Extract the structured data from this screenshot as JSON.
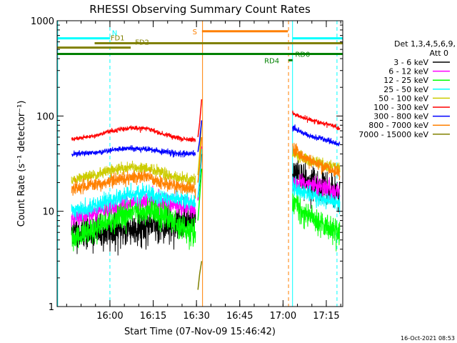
{
  "chart_data": {
    "type": "line",
    "title": "RHESSI Observing Summary Count Rates",
    "xlabel": "Start Time (07-Nov-09 15:46:42)",
    "ylabel": "Count Rate (s⁻¹ detector⁻¹)",
    "yscale": "log",
    "ylim": [
      1,
      1000
    ],
    "xlim_minutes": [
      -5,
      94
    ],
    "x_ticks": [
      {
        "t": 13.3,
        "label": "16:00"
      },
      {
        "t": 28.3,
        "label": "16:15"
      },
      {
        "t": 43.3,
        "label": "16:30"
      },
      {
        "t": 58.3,
        "label": "16:45"
      },
      {
        "t": 73.3,
        "label": "17:00"
      },
      {
        "t": 88.3,
        "label": "17:15"
      }
    ],
    "y_ticks": [
      {
        "v": 1,
        "label": "1"
      },
      {
        "v": 10,
        "label": "10"
      },
      {
        "v": 100,
        "label": "100"
      },
      {
        "v": 1000,
        "label": "1000"
      }
    ],
    "legend": {
      "title_lines": [
        "Det 1,3,4,5,6,9,",
        "Att 0"
      ],
      "placement": "right"
    },
    "footer_date": "16-Oct-2021 08:53",
    "gaps": [
      {
        "start": 45.2,
        "end": 76.5
      }
    ],
    "series": [
      {
        "name": "3 - 6 keV",
        "color": "#000000",
        "seed": 11,
        "noise": 0.09,
        "pre": [
          [
            0,
            6
          ],
          [
            8,
            6
          ],
          [
            14,
            6
          ],
          [
            20,
            6.5
          ],
          [
            27,
            7
          ],
          [
            33,
            7.3
          ],
          [
            38,
            7.5
          ],
          [
            43,
            8.5
          ]
        ],
        "spike": [
          [
            43.8,
            13
          ],
          [
            44.4,
            20
          ],
          [
            45.1,
            40
          ]
        ],
        "post": [
          [
            76.6,
            25
          ],
          [
            80,
            22
          ],
          [
            85,
            19
          ],
          [
            90,
            16
          ],
          [
            93,
            14.5
          ]
        ]
      },
      {
        "name": "6 - 12 keV",
        "color": "#ff00ff",
        "seed": 21,
        "noise": 0.05,
        "pre": [
          [
            0,
            8.3
          ],
          [
            8,
            9.5
          ],
          [
            14,
            10.5
          ],
          [
            20,
            12
          ],
          [
            26,
            12.8
          ],
          [
            32,
            12.5
          ],
          [
            38,
            11.2
          ],
          [
            43,
            10.5
          ]
        ],
        "spike": [
          [
            43.8,
            13
          ],
          [
            44.4,
            22
          ],
          [
            45.1,
            48
          ]
        ],
        "post": [
          [
            76.6,
            21
          ],
          [
            80,
            20
          ],
          [
            85,
            18
          ],
          [
            90,
            17
          ],
          [
            93,
            16
          ]
        ]
      },
      {
        "name": "12 - 25 keV",
        "color": "#00ff00",
        "seed": 31,
        "noise": 0.07,
        "pre": [
          [
            0,
            5
          ],
          [
            8,
            6.5
          ],
          [
            14,
            8
          ],
          [
            20,
            9.5
          ],
          [
            26,
            10
          ],
          [
            32,
            9
          ],
          [
            38,
            7
          ],
          [
            43,
            6
          ]
        ],
        "spike": [
          [
            43.8,
            8
          ],
          [
            44.4,
            14
          ],
          [
            45.1,
            28
          ]
        ],
        "post": [
          [
            76.6,
            13
          ],
          [
            80,
            10
          ],
          [
            85,
            8
          ],
          [
            90,
            6.5
          ],
          [
            93,
            6
          ]
        ]
      },
      {
        "name": "25 - 50 keV",
        "color": "#00ffff",
        "seed": 41,
        "noise": 0.045,
        "pre": [
          [
            0,
            10
          ],
          [
            8,
            11.5
          ],
          [
            14,
            13
          ],
          [
            20,
            15
          ],
          [
            26,
            15.5
          ],
          [
            32,
            14
          ],
          [
            38,
            13
          ],
          [
            43,
            12.5
          ]
        ],
        "spike": [
          [
            43.8,
            14
          ],
          [
            44.4,
            22
          ],
          [
            45.1,
            45
          ]
        ],
        "post": [
          [
            76.6,
            18
          ],
          [
            80,
            16
          ],
          [
            85,
            14
          ],
          [
            90,
            13
          ],
          [
            93,
            12
          ]
        ]
      },
      {
        "name": "50 - 100 keV",
        "color": "#cccc00",
        "seed": 51,
        "noise": 0.03,
        "pre": [
          [
            0,
            21
          ],
          [
            8,
            24
          ],
          [
            14,
            27
          ],
          [
            20,
            29
          ],
          [
            26,
            28
          ],
          [
            32,
            25
          ],
          [
            38,
            22
          ],
          [
            43,
            21.5
          ]
        ],
        "spike": [
          [
            43.8,
            24
          ],
          [
            44.4,
            40
          ],
          [
            45.1,
            90
          ]
        ],
        "post": [
          [
            76.6,
            40
          ],
          [
            80,
            36
          ],
          [
            85,
            32
          ],
          [
            90,
            30
          ],
          [
            93,
            29
          ]
        ]
      },
      {
        "name": "100 - 300 keV",
        "color": "#ff0000",
        "seed": 61,
        "noise": 0.012,
        "pre": [
          [
            0,
            57
          ],
          [
            8,
            62
          ],
          [
            14,
            70
          ],
          [
            20,
            75
          ],
          [
            26,
            74
          ],
          [
            32,
            64
          ],
          [
            38,
            58
          ],
          [
            43,
            56
          ]
        ],
        "spike": [
          [
            43.8,
            60
          ],
          [
            44.4,
            85
          ],
          [
            45.1,
            150
          ]
        ],
        "post": [
          [
            76.6,
            107
          ],
          [
            80,
            96
          ],
          [
            85,
            87
          ],
          [
            90,
            80
          ],
          [
            93,
            74
          ]
        ]
      },
      {
        "name": "300 - 800 keV",
        "color": "#0000ff",
        "seed": 71,
        "noise": 0.015,
        "pre": [
          [
            0,
            40
          ],
          [
            8,
            41
          ],
          [
            14,
            44
          ],
          [
            20,
            46
          ],
          [
            26,
            45
          ],
          [
            32,
            42
          ],
          [
            38,
            40
          ],
          [
            43,
            40
          ]
        ],
        "spike": [
          [
            43.8,
            42
          ],
          [
            44.4,
            55
          ],
          [
            45.1,
            90
          ]
        ],
        "post": [
          [
            76.6,
            75
          ],
          [
            80,
            66
          ],
          [
            85,
            59
          ],
          [
            90,
            54
          ],
          [
            93,
            50
          ]
        ]
      },
      {
        "name": "800 - 7000 keV",
        "color": "#ff8000",
        "seed": 81,
        "noise": 0.035,
        "pre": [
          [
            0,
            17
          ],
          [
            8,
            19
          ],
          [
            14,
            21
          ],
          [
            20,
            23
          ],
          [
            26,
            23
          ],
          [
            32,
            20
          ],
          [
            38,
            18
          ],
          [
            43,
            17
          ]
        ],
        "spike": [
          [
            43.8,
            20
          ],
          [
            44.4,
            30
          ],
          [
            45.1,
            60
          ]
        ],
        "post": [
          [
            76.6,
            46
          ],
          [
            80,
            38
          ],
          [
            85,
            32
          ],
          [
            90,
            27
          ],
          [
            93,
            25
          ]
        ]
      },
      {
        "name": "7000 - 15000 keV",
        "color": "#808000",
        "seed": 91,
        "noise": 0.05,
        "pre": [],
        "spike": [
          [
            43.8,
            1.5
          ],
          [
            44.4,
            2.2
          ],
          [
            45.1,
            3
          ]
        ],
        "post": []
      }
    ],
    "flag_bars": [
      {
        "label": "N",
        "color": "#00ffff",
        "segments": [
          [
            -5,
            13.3
          ],
          [
            76.6,
            94
          ]
        ],
        "y": 654,
        "label_t": 14.0,
        "label_side": "above"
      },
      {
        "label": "FD1",
        "color": "#808000",
        "segments": [
          [
            8,
            94
          ]
        ],
        "y": 581,
        "label_t": 13.5,
        "label_side": "above"
      },
      {
        "label": "FD2",
        "color": "#808000",
        "segments": [
          [
            -5,
            20.5
          ]
        ],
        "y": 522,
        "label_t": 22,
        "label_side": "above"
      },
      {
        "label": "S",
        "color": "#ff8000",
        "segments": [
          [
            45.2,
            75
          ]
        ],
        "y": 775,
        "label_t": 44.0,
        "label_side": "left"
      },
      {
        "label": "RD0",
        "color": "#008000",
        "segments": [
          [
            -5,
            94
          ]
        ],
        "y": 448,
        "label_t": 77.0,
        "label_side": "right"
      },
      {
        "label": "RD4",
        "color": "#008000",
        "segments": [
          [
            75.2,
            76.6
          ]
        ],
        "y": 385,
        "label_t": 72.5,
        "label_side": "left"
      }
    ],
    "vlines": [
      {
        "t": -4.8,
        "color": "#00ffff",
        "style": "solid"
      },
      {
        "t": 13.3,
        "color": "#00ffff",
        "style": "dashed"
      },
      {
        "t": 45.4,
        "color": "#ff8000",
        "style": "solid"
      },
      {
        "t": 75.2,
        "color": "#ff8000",
        "style": "dashed"
      },
      {
        "t": 76.6,
        "color": "#00ffff",
        "style": "solid"
      },
      {
        "t": 92.0,
        "color": "#00ffff",
        "style": "dashed"
      }
    ]
  }
}
